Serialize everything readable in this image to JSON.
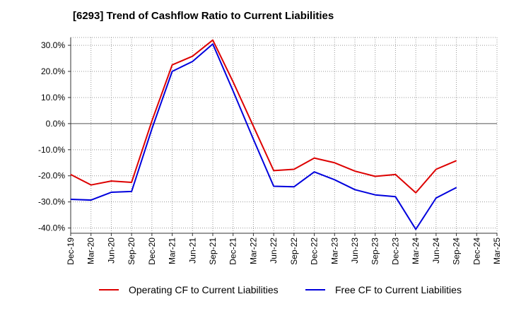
{
  "title": "[6293]  Trend of Cashflow Ratio to Current Liabilities",
  "chart_data": {
    "type": "line",
    "title": "[6293]  Trend of Cashflow Ratio to Current Liabilities",
    "xlabel": "",
    "ylabel": "",
    "x_tick_labels": [
      "Dec-19",
      "Mar-20",
      "Jun-20",
      "Sep-20",
      "Dec-20",
      "Mar-21",
      "Jun-21",
      "Sep-21",
      "Dec-21",
      "Mar-22",
      "Jun-22",
      "Sep-22",
      "Dec-22",
      "Mar-23",
      "Jun-23",
      "Sep-23",
      "Dec-23",
      "Mar-24",
      "Jun-24",
      "Sep-24",
      "Dec-24",
      "Mar-25"
    ],
    "y_tick_labels": [
      "30.0%",
      "20.0%",
      "10.0%",
      "0.0%",
      "-10.0%",
      "-20.0%",
      "-30.0%",
      "-40.0%"
    ],
    "y_ticks": [
      30,
      20,
      10,
      0,
      -10,
      -20,
      -30,
      -40
    ],
    "ylim": [
      -42,
      33
    ],
    "grid": true,
    "legend_position": "bottom",
    "series": [
      {
        "name": "Operating CF to Current Liabilities",
        "color": "#dd0000",
        "values": [
          -19.5,
          -23.5,
          -22.0,
          -22.5,
          1.0,
          22.5,
          25.8,
          32.0,
          16.0,
          -1.0,
          -18.0,
          -17.5,
          -13.2,
          -15.0,
          -18.2,
          -20.2,
          -19.5,
          -26.5,
          -17.5,
          -14.2,
          null,
          null
        ]
      },
      {
        "name": "Free CF to Current Liabilities",
        "color": "#0000dd",
        "values": [
          -29.0,
          -29.3,
          -26.3,
          -26.0,
          -2.0,
          20.0,
          23.8,
          30.5,
          12.5,
          -6.0,
          -24.0,
          -24.2,
          -18.5,
          -21.5,
          -25.3,
          -27.3,
          -28.0,
          -40.5,
          -28.5,
          -24.5,
          null,
          null
        ]
      }
    ]
  }
}
